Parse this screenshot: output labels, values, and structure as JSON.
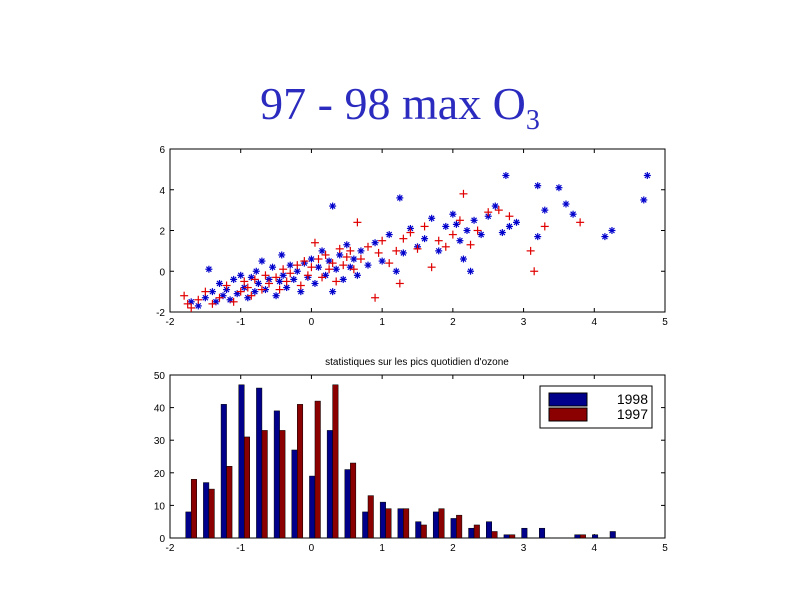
{
  "title": {
    "main": "97 - 98 max O",
    "sub": "3"
  },
  "colors": {
    "title": "#2b2bbf",
    "series_1998": "#00008b",
    "series_1997": "#8b0000",
    "scatter_1998": "#0000cc",
    "scatter_1997": "#e00000"
  },
  "chart_data": [
    {
      "type": "scatter",
      "xlim": [
        -2,
        5
      ],
      "ylim": [
        -2,
        6
      ],
      "xticks": [
        "-2",
        "-1",
        "0",
        "1",
        "2",
        "3",
        "4",
        "5"
      ],
      "yticks": [
        "-2",
        "0",
        "2",
        "4",
        "6"
      ],
      "grid": false,
      "series": [
        {
          "marker": "*",
          "color": "#0000cc",
          "points": [
            [
              -1.7,
              -1.5
            ],
            [
              -1.6,
              -1.7
            ],
            [
              -1.5,
              -1.3
            ],
            [
              -1.45,
              0.1
            ],
            [
              -1.4,
              -1.0
            ],
            [
              -1.35,
              -1.5
            ],
            [
              -1.3,
              -0.6
            ],
            [
              -1.25,
              -1.2
            ],
            [
              -1.2,
              -0.9
            ],
            [
              -1.15,
              -1.4
            ],
            [
              -1.1,
              -0.4
            ],
            [
              -1.05,
              -1.1
            ],
            [
              -1.0,
              -0.2
            ],
            [
              -0.95,
              -0.8
            ],
            [
              -0.9,
              -1.3
            ],
            [
              -0.85,
              -0.3
            ],
            [
              -0.8,
              -1.0
            ],
            [
              -0.78,
              0.0
            ],
            [
              -0.75,
              -0.6
            ],
            [
              -0.7,
              0.5
            ],
            [
              -0.65,
              -0.9
            ],
            [
              -0.6,
              -0.4
            ],
            [
              -0.55,
              0.2
            ],
            [
              -0.5,
              -1.2
            ],
            [
              -0.45,
              -0.5
            ],
            [
              -0.42,
              0.8
            ],
            [
              -0.4,
              -0.2
            ],
            [
              -0.35,
              -0.8
            ],
            [
              -0.3,
              0.3
            ],
            [
              -0.25,
              -0.4
            ],
            [
              -0.2,
              0.0
            ],
            [
              -0.15,
              -1.0
            ],
            [
              -0.1,
              0.4
            ],
            [
              -0.05,
              -0.3
            ],
            [
              0.0,
              0.6
            ],
            [
              0.05,
              -0.6
            ],
            [
              0.1,
              0.2
            ],
            [
              0.15,
              1.0
            ],
            [
              0.2,
              -0.2
            ],
            [
              0.25,
              0.5
            ],
            [
              0.3,
              3.2
            ],
            [
              0.3,
              -1.0
            ],
            [
              0.35,
              0.1
            ],
            [
              0.4,
              0.8
            ],
            [
              0.45,
              -0.4
            ],
            [
              0.5,
              1.3
            ],
            [
              0.55,
              0.2
            ],
            [
              0.6,
              0.6
            ],
            [
              0.65,
              -0.2
            ],
            [
              0.7,
              1.0
            ],
            [
              0.8,
              0.3
            ],
            [
              0.9,
              1.4
            ],
            [
              1.0,
              0.5
            ],
            [
              1.1,
              1.8
            ],
            [
              1.2,
              0.0
            ],
            [
              1.25,
              3.6
            ],
            [
              1.3,
              0.9
            ],
            [
              1.4,
              2.1
            ],
            [
              1.5,
              1.2
            ],
            [
              1.6,
              1.6
            ],
            [
              1.7,
              2.6
            ],
            [
              1.8,
              1.0
            ],
            [
              1.9,
              2.2
            ],
            [
              2.0,
              2.8
            ],
            [
              2.05,
              2.3
            ],
            [
              2.1,
              1.5
            ],
            [
              2.15,
              0.6
            ],
            [
              2.2,
              2.0
            ],
            [
              2.25,
              0.0
            ],
            [
              2.3,
              2.5
            ],
            [
              2.4,
              1.8
            ],
            [
              2.5,
              2.7
            ],
            [
              2.6,
              3.2
            ],
            [
              2.7,
              1.9
            ],
            [
              2.75,
              4.7
            ],
            [
              2.8,
              2.2
            ],
            [
              2.9,
              2.4
            ],
            [
              3.2,
              4.2
            ],
            [
              3.2,
              1.7
            ],
            [
              3.3,
              3.0
            ],
            [
              3.5,
              4.1
            ],
            [
              3.6,
              3.3
            ],
            [
              3.7,
              2.8
            ],
            [
              4.15,
              1.7
            ],
            [
              4.25,
              2.0
            ],
            [
              4.7,
              3.5
            ],
            [
              4.75,
              4.7
            ]
          ]
        },
        {
          "marker": "+",
          "color": "#e00000",
          "points": [
            [
              -1.8,
              -1.2
            ],
            [
              -1.75,
              -1.6
            ],
            [
              -1.7,
              -1.8
            ],
            [
              -1.6,
              -1.4
            ],
            [
              -1.5,
              -1.0
            ],
            [
              -1.4,
              -1.6
            ],
            [
              -1.3,
              -1.3
            ],
            [
              -1.2,
              -0.7
            ],
            [
              -1.1,
              -1.5
            ],
            [
              -1.0,
              -1.0
            ],
            [
              -0.95,
              -0.5
            ],
            [
              -0.9,
              -0.8
            ],
            [
              -0.85,
              -1.2
            ],
            [
              -0.8,
              -0.4
            ],
            [
              -0.7,
              -0.9
            ],
            [
              -0.65,
              -0.2
            ],
            [
              -0.6,
              -0.6
            ],
            [
              -0.5,
              -0.3
            ],
            [
              -0.45,
              -0.9
            ],
            [
              -0.4,
              0.1
            ],
            [
              -0.35,
              -0.5
            ],
            [
              -0.3,
              -0.1
            ],
            [
              -0.2,
              0.3
            ],
            [
              -0.15,
              -0.7
            ],
            [
              -0.1,
              0.5
            ],
            [
              -0.05,
              -0.2
            ],
            [
              0.0,
              0.2
            ],
            [
              0.05,
              1.4
            ],
            [
              0.1,
              0.6
            ],
            [
              0.15,
              -0.3
            ],
            [
              0.2,
              0.8
            ],
            [
              0.25,
              0.1
            ],
            [
              0.3,
              0.4
            ],
            [
              0.35,
              -0.5
            ],
            [
              0.4,
              1.1
            ],
            [
              0.45,
              0.3
            ],
            [
              0.5,
              0.7
            ],
            [
              0.55,
              1.0
            ],
            [
              0.6,
              0.1
            ],
            [
              0.65,
              2.4
            ],
            [
              0.7,
              0.6
            ],
            [
              0.8,
              1.2
            ],
            [
              0.9,
              -1.3
            ],
            [
              0.95,
              0.9
            ],
            [
              1.0,
              1.5
            ],
            [
              1.1,
              0.4
            ],
            [
              1.2,
              1.0
            ],
            [
              1.25,
              -0.6
            ],
            [
              1.3,
              1.6
            ],
            [
              1.4,
              1.9
            ],
            [
              1.5,
              1.1
            ],
            [
              1.6,
              2.2
            ],
            [
              1.7,
              0.2
            ],
            [
              1.8,
              1.5
            ],
            [
              1.9,
              1.2
            ],
            [
              2.0,
              1.8
            ],
            [
              2.1,
              2.5
            ],
            [
              2.15,
              3.8
            ],
            [
              2.25,
              1.3
            ],
            [
              2.35,
              2.0
            ],
            [
              2.5,
              2.9
            ],
            [
              2.65,
              3.0
            ],
            [
              2.8,
              2.7
            ],
            [
              3.1,
              1.0
            ],
            [
              3.15,
              0.0
            ],
            [
              3.3,
              2.2
            ],
            [
              3.8,
              2.4
            ]
          ]
        }
      ]
    },
    {
      "type": "bar",
      "title": "statistiques sur les pics quotidien d'ozone",
      "xlim": [
        -2,
        5
      ],
      "ylim": [
        0,
        50
      ],
      "xticks": [
        "-2",
        "-1",
        "0",
        "1",
        "2",
        "3",
        "4",
        "5"
      ],
      "yticks": [
        "0",
        "10",
        "20",
        "30",
        "40",
        "50"
      ],
      "legend": {
        "position": "top-right"
      },
      "x": [
        -1.7,
        -1.45,
        -1.2,
        -0.95,
        -0.7,
        -0.45,
        -0.2,
        0.05,
        0.3,
        0.55,
        0.8,
        1.05,
        1.3,
        1.55,
        1.8,
        2.05,
        2.3,
        2.55,
        2.8,
        3.05,
        3.3,
        3.55,
        3.8,
        4.05,
        4.3,
        4.55
      ],
      "series": [
        {
          "name": "1998",
          "color": "#00008b",
          "values": [
            8,
            17,
            41,
            47,
            46,
            39,
            27,
            19,
            33,
            21,
            8,
            11,
            9,
            5,
            8,
            6,
            3,
            5,
            1,
            3,
            3,
            0,
            1,
            1,
            2,
            0
          ]
        },
        {
          "name": "1997",
          "color": "#8b0000",
          "values": [
            18,
            15,
            22,
            31,
            33,
            33,
            41,
            42,
            47,
            23,
            13,
            9,
            9,
            4,
            9,
            7,
            4,
            2,
            1,
            0,
            0,
            0,
            1,
            0,
            0,
            0
          ]
        }
      ]
    }
  ]
}
